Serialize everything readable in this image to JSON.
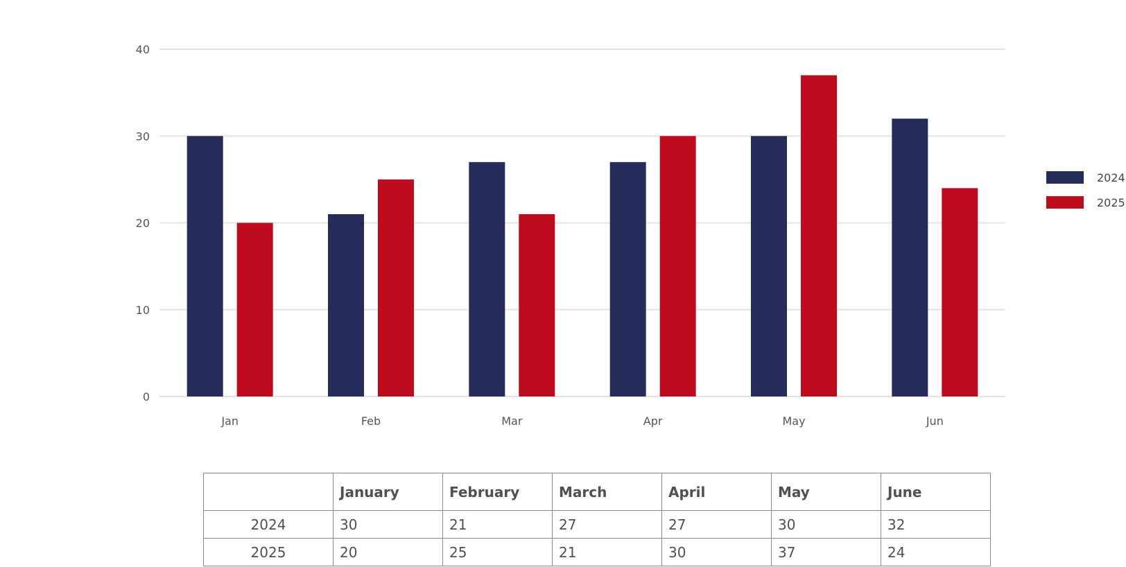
{
  "chart_data": {
    "type": "bar",
    "categories": [
      "Jan",
      "Feb",
      "Mar",
      "Apr",
      "May",
      "Jun"
    ],
    "series": [
      {
        "name": "2024",
        "values": [
          30,
          21,
          27,
          27,
          30,
          32
        ],
        "color": "#252c5a"
      },
      {
        "name": "2025",
        "values": [
          20,
          25,
          21,
          30,
          37,
          24
        ],
        "color": "#be0b1d"
      }
    ],
    "ylim": [
      0,
      40
    ],
    "yticks": [
      0,
      10,
      20,
      30,
      40
    ],
    "grid": true,
    "legend": "right"
  },
  "table": {
    "columns": [
      "January",
      "February",
      "March",
      "April",
      "May",
      "June"
    ],
    "rows": [
      {
        "label": "2024",
        "values": [
          "30",
          "21",
          "27",
          "27",
          "30",
          "32"
        ]
      },
      {
        "label": "2025",
        "values": [
          "20",
          "25",
          "21",
          "30",
          "37",
          "24"
        ]
      }
    ]
  }
}
